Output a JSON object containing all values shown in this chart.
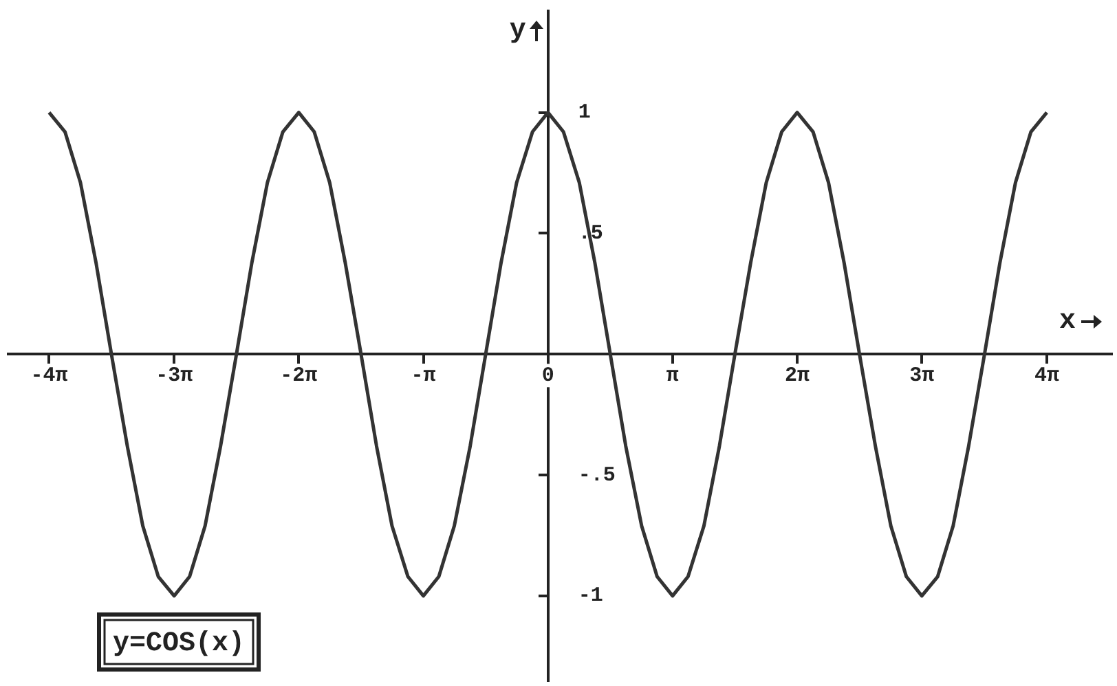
{
  "chart_data": {
    "type": "line",
    "xlabel": "x",
    "ylabel": "y",
    "annotations": [
      "y=COS(x)"
    ],
    "color": "#333333",
    "marker": "none",
    "grid": false,
    "legend": false,
    "xlim": [
      -13.6,
      14.2
    ],
    "ylim": [
      -1.35,
      1.42
    ],
    "xticks": [
      {
        "value": -12.57,
        "label": "-4π"
      },
      {
        "value": -9.42,
        "label": "-3π"
      },
      {
        "value": -6.28,
        "label": "-2π"
      },
      {
        "value": -3.14,
        "label": "-π"
      },
      {
        "value": 0,
        "label": "0"
      },
      {
        "value": 3.14,
        "label": "π"
      },
      {
        "value": 6.28,
        "label": "2π"
      },
      {
        "value": 9.42,
        "label": "3π"
      },
      {
        "value": 12.57,
        "label": "4π"
      }
    ],
    "yticks": [
      {
        "value": -1,
        "label": "-1"
      },
      {
        "value": -0.5,
        "label": "-.5"
      },
      {
        "value": 0.5,
        "label": ".5"
      },
      {
        "value": 1,
        "label": "1"
      }
    ],
    "x": [
      -12.57,
      -12.17,
      -11.78,
      -11.39,
      -11.0,
      -10.6,
      -10.21,
      -9.82,
      -9.42,
      -9.03,
      -8.64,
      -8.25,
      -7.85,
      -7.46,
      -7.07,
      -6.68,
      -6.28,
      -5.89,
      -5.5,
      -5.11,
      -4.71,
      -4.32,
      -3.93,
      -3.53,
      -3.14,
      -2.75,
      -2.36,
      -1.96,
      -1.57,
      -1.18,
      -0.79,
      -0.39,
      0,
      0.39,
      0.79,
      1.18,
      1.57,
      1.96,
      2.36,
      2.75,
      3.14,
      3.53,
      3.93,
      4.32,
      4.71,
      5.11,
      5.5,
      5.89,
      6.28,
      6.68,
      7.07,
      7.46,
      7.85,
      8.25,
      8.64,
      9.03,
      9.42,
      9.82,
      10.21,
      10.6,
      11.0,
      11.39,
      11.78,
      12.17,
      12.57
    ],
    "values": [
      1,
      0.92,
      0.71,
      0.38,
      0,
      -0.38,
      -0.71,
      -0.92,
      -1,
      -0.92,
      -0.71,
      -0.38,
      0,
      0.38,
      0.71,
      0.92,
      1,
      0.92,
      0.71,
      0.38,
      0,
      -0.38,
      -0.71,
      -0.92,
      -1,
      -0.92,
      -0.71,
      -0.38,
      0,
      0.38,
      0.71,
      0.92,
      1,
      0.92,
      0.71,
      0.38,
      0,
      -0.38,
      -0.71,
      -0.92,
      -1,
      -0.92,
      -0.71,
      -0.38,
      0,
      0.38,
      0.71,
      0.92,
      1,
      0.92,
      0.71,
      0.38,
      0,
      -0.38,
      -0.71,
      -0.92,
      -1,
      -0.92,
      -0.71,
      -0.38,
      0,
      0.38,
      0.71,
      0.92,
      1
    ]
  }
}
